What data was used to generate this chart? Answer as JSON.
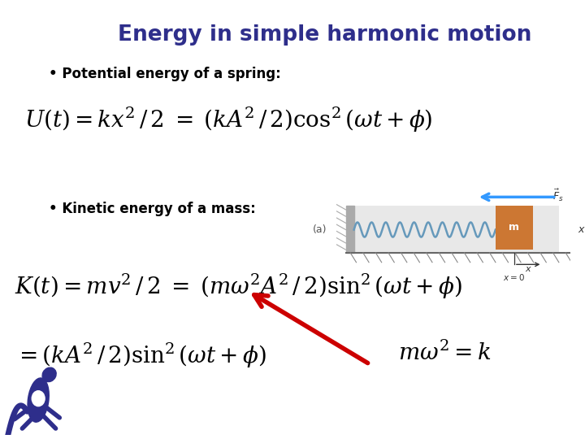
{
  "title": "Energy in simple harmonic motion",
  "title_color": "#2e2e8b",
  "title_fontsize": 19,
  "bg_color": "#ffffff",
  "bullet1": " Potential energy of a spring:",
  "bullet2": " Kinetic energy of a mass:",
  "bullet_fontsize": 12,
  "bullet_color": "#000000",
  "eq_color": "#000000",
  "eq1_fontsize": 20,
  "eq2_fontsize": 20,
  "eq3_fontsize": 20,
  "eq4_fontsize": 20,
  "arrow_color": "#cc0000",
  "spring_color": "#6699bb",
  "mass_color": "#cc7733",
  "force_arrow_color": "#3399ff",
  "diagram_label": "(a)"
}
